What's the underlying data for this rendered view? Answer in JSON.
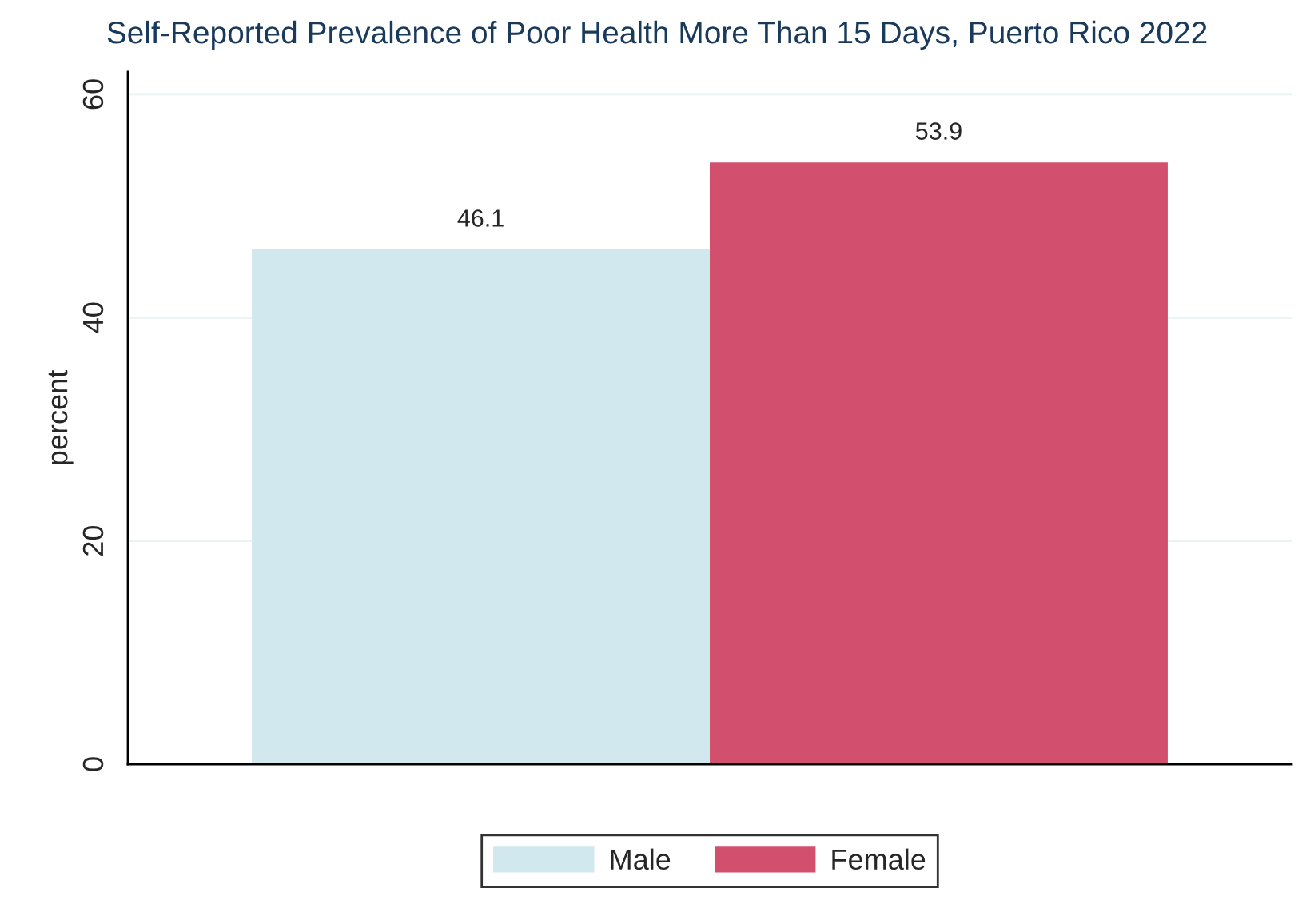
{
  "chart_data": {
    "type": "bar",
    "title": "Self-Reported Prevalence of Poor Health More Than 15 Days, Puerto Rico 2022",
    "ylabel": "percent",
    "categories": [
      null
    ],
    "series": [
      {
        "name": "Male",
        "color": "#d0e8ee",
        "values": [
          46.1
        ]
      },
      {
        "name": "Female",
        "color": "#d2506e",
        "values": [
          53.9
        ]
      }
    ],
    "ylim": [
      0,
      62
    ],
    "yticks": [
      0,
      20,
      40,
      60
    ],
    "grid": "y",
    "legend": "bottom",
    "data_labels": true
  }
}
